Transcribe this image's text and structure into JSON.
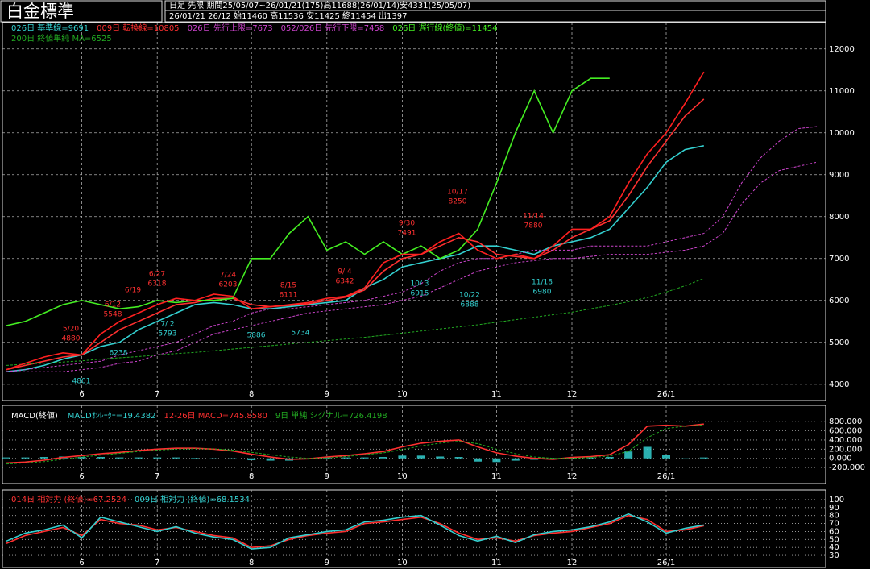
{
  "header": {
    "title": "白金標準",
    "info1": "日足 先限 期間25/05/07~26/01/21(175)高11688(26/01/14)安4331(25/05/07)",
    "info2": "26/01/21 26/12 始11460 高11536 安11425 終11454 出1397"
  },
  "chart_data": [
    {
      "type": "line",
      "grid": true,
      "categories": [
        null,
        null,
        null,
        null,
        "6",
        null,
        null,
        null,
        "7",
        null,
        null,
        null,
        null,
        "8",
        null,
        null,
        null,
        "9",
        null,
        null,
        null,
        "10",
        null,
        null,
        null,
        null,
        "11",
        null,
        null,
        null,
        "12",
        null,
        null,
        null,
        null,
        "26/1",
        null,
        null,
        null,
        null,
        null,
        null,
        null,
        null
      ],
      "ylim": [
        3900,
        12630
      ],
      "yticks": [
        4000,
        5000,
        6000,
        7000,
        8000,
        9000,
        10000,
        11000,
        12000
      ],
      "series": [
        {
          "name": "026日 基準線=9691",
          "color": "#33d0d0",
          "values": [
            4300,
            4350,
            4450,
            4600,
            4700,
            4900,
            5000,
            5300,
            5500,
            5700,
            5900,
            5950,
            5900,
            5800,
            5800,
            5850,
            5900,
            5950,
            6000,
            6300,
            6500,
            6800,
            6900,
            7000,
            7100,
            7300,
            7300,
            7200,
            7100,
            7300,
            7400,
            7500,
            7700,
            8200,
            8700,
            9300,
            9600,
            9691,
            null,
            null,
            null,
            null,
            null,
            null
          ]
        },
        {
          "name": "009日 転換線=10805",
          "color": "#ff3030",
          "values": [
            4350,
            4450,
            4550,
            4650,
            4700,
            5000,
            5300,
            5500,
            5700,
            5900,
            5950,
            6050,
            6050,
            5900,
            5850,
            5880,
            5920,
            6000,
            6080,
            6250,
            6700,
            7000,
            7100,
            7300,
            7500,
            7400,
            7100,
            7050,
            7000,
            7200,
            7500,
            7700,
            7900,
            8500,
            9200,
            9800,
            10400,
            10805,
            null,
            null,
            null,
            null,
            null,
            null
          ]
        },
        {
          "name": "026日 先行上限=7673",
          "color": "#cc44cc",
          "dashed": true,
          "values": [
            4300,
            4350,
            4400,
            4450,
            4500,
            4550,
            4700,
            4800,
            4900,
            5000,
            5200,
            5400,
            5500,
            5700,
            5800,
            5800,
            5850,
            5900,
            5950,
            6000,
            6100,
            6200,
            6400,
            6700,
            6900,
            7000,
            7000,
            7100,
            7200,
            7200,
            7200,
            7300,
            7300,
            7300,
            7300,
            7400,
            7500,
            7600,
            8000,
            8800,
            9400,
            9800,
            10100,
            10150
          ]
        },
        {
          "name": "052/026日 先行下限=7458",
          "color": "#cc44cc",
          "dashed": true,
          "values": [
            4300,
            4300,
            4300,
            4300,
            4350,
            4400,
            4500,
            4550,
            4700,
            4800,
            5000,
            5200,
            5300,
            5400,
            5500,
            5600,
            5700,
            5750,
            5800,
            5850,
            5900,
            6000,
            6100,
            6300,
            6500,
            6700,
            6800,
            6900,
            6950,
            7000,
            7000,
            7050,
            7100,
            7100,
            7100,
            7150,
            7200,
            7300,
            7600,
            8300,
            8800,
            9100,
            9200,
            9300
          ]
        },
        {
          "name": "026日 遅行線(終値)=11454",
          "color": "#44ee22",
          "values": [
            5400,
            5500,
            5700,
            5900,
            6000,
            5900,
            5800,
            5850,
            6000,
            5950,
            6000,
            6000,
            6050,
            7000,
            7000,
            7600,
            8000,
            7200,
            7400,
            7100,
            7400,
            7100,
            7300,
            7000,
            7200,
            7700,
            8800,
            10000,
            11000,
            10000,
            11000,
            11300,
            11300,
            null,
            null,
            null,
            null,
            null,
            null,
            null,
            null,
            null,
            null,
            null
          ]
        },
        {
          "name": "200日 終値単純 MA=6525",
          "color": "#22aa22",
          "dashed": true,
          "values": [
            4450,
            4480,
            4500,
            4530,
            4560,
            4600,
            4630,
            4660,
            4700,
            4730,
            4760,
            4800,
            4840,
            4880,
            4920,
            4960,
            5000,
            5040,
            5080,
            5120,
            5170,
            5220,
            5270,
            5320,
            5370,
            5420,
            5480,
            5540,
            5600,
            5660,
            5720,
            5800,
            5880,
            5970,
            6070,
            6200,
            6350,
            6525,
            null,
            null,
            null,
            null,
            null,
            null
          ]
        },
        {
          "color": "#ff2020",
          "values": [
            4350,
            4500,
            4650,
            4750,
            4700,
            5200,
            5500,
            5700,
            5900,
            6050,
            6000,
            6150,
            6100,
            5800,
            5850,
            5900,
            5950,
            6050,
            6100,
            6300,
            6900,
            7100,
            7100,
            7400,
            7600,
            7200,
            7000,
            7100,
            7000,
            7300,
            7700,
            7700,
            8000,
            8800,
            9500,
            10000,
            10700,
            11454,
            null,
            null,
            null,
            null,
            null,
            null
          ]
        }
      ],
      "annotations": [
        {
          "date": "5/20",
          "price": "4880",
          "color": "#ff3030"
        },
        {
          "date": "6/12",
          "price": "5548",
          "color": "#ff3030"
        },
        {
          "date": "6/19",
          "color": "#ff3030"
        },
        {
          "date": "6/27",
          "price": "6318",
          "color": "#ff3030"
        },
        {
          "date": "7/24",
          "price": "6203",
          "color": "#ff3030"
        },
        {
          "date": "8/15",
          "price": "6111",
          "color": "#ff3030"
        },
        {
          "date": "9/ 4",
          "price": "6342",
          "color": "#ff3030"
        },
        {
          "date": "9/30",
          "price": "7491",
          "color": "#ff3030"
        },
        {
          "date": "10/17",
          "price": "8250",
          "color": "#ff3030"
        },
        {
          "date": "11/14",
          "price": "7880",
          "color": "#ff3030"
        },
        {
          "price": "4801",
          "color": "#33d0d0"
        },
        {
          "price": "6238",
          "color": "#33d0d0"
        },
        {
          "date": "7/ 2",
          "price": "5793",
          "color": "#33d0d0"
        },
        {
          "price": "5886",
          "color": "#33d0d0"
        },
        {
          "price": "5734",
          "color": "#33d0d0"
        },
        {
          "date": "10/ 3",
          "price": "6915",
          "color": "#33d0d0"
        },
        {
          "date": "10/22",
          "price": "6888",
          "color": "#33d0d0"
        },
        {
          "date": "11/18",
          "price": "6980",
          "color": "#33d0d0"
        }
      ]
    },
    {
      "type": "line",
      "title": "MACD(終値)",
      "categories": [
        null,
        null,
        null,
        null,
        "6",
        null,
        null,
        null,
        "7",
        null,
        null,
        null,
        null,
        "8",
        null,
        null,
        null,
        "9",
        null,
        null,
        null,
        "10",
        null,
        null,
        null,
        null,
        "11",
        null,
        null,
        null,
        "12",
        null,
        null,
        null,
        null,
        "26/1",
        null,
        null
      ],
      "ylim": [
        -250,
        1030
      ],
      "yticks": [
        {
          "value": -200,
          "label": "-200.000"
        },
        {
          "value": 0,
          "label": "0.000"
        },
        {
          "value": 200,
          "label": "200.000"
        },
        {
          "value": 400,
          "label": "400.000"
        },
        {
          "value": 600,
          "label": "600.000"
        },
        {
          "value": 800,
          "label": "800.000"
        }
      ],
      "series": [
        {
          "name": "MACDｵｼﾚｰﾀｰ=19.4382",
          "type": "bar",
          "color": "#33d0d0",
          "values": [
            20,
            20,
            30,
            40,
            30,
            30,
            20,
            20,
            20,
            20,
            10,
            -5,
            -20,
            -40,
            -50,
            -50,
            -10,
            20,
            20,
            20,
            30,
            60,
            60,
            40,
            30,
            -70,
            -80,
            -50,
            -30,
            -20,
            20,
            20,
            30,
            150,
            250,
            70,
            0,
            19.4382
          ]
        },
        {
          "name": "12-26日 MACD=745.8580",
          "color": "#ff3030",
          "values": [
            -100,
            -80,
            -40,
            20,
            60,
            100,
            130,
            170,
            200,
            220,
            220,
            200,
            160,
            90,
            30,
            -20,
            -10,
            30,
            60,
            100,
            150,
            250,
            330,
            370,
            400,
            250,
            120,
            50,
            0,
            -20,
            20,
            40,
            80,
            300,
            700,
            720,
            700,
            745.858
          ]
        },
        {
          "name": "9日 単純 シグナル=726.4198",
          "color": "#22aa22",
          "dashed": true,
          "values": [
            -120,
            -100,
            -70,
            -20,
            30,
            70,
            110,
            150,
            180,
            200,
            210,
            205,
            180,
            130,
            80,
            30,
            0,
            10,
            40,
            80,
            120,
            190,
            270,
            330,
            370,
            320,
            200,
            100,
            30,
            0,
            0,
            20,
            50,
            150,
            450,
            650,
            700,
            726.4198
          ]
        }
      ]
    },
    {
      "type": "line",
      "categories": [
        null,
        null,
        null,
        null,
        "6",
        null,
        null,
        null,
        "7",
        null,
        null,
        null,
        null,
        "8",
        null,
        null,
        null,
        "9",
        null,
        null,
        null,
        "10",
        null,
        null,
        null,
        null,
        "11",
        null,
        null,
        null,
        "12",
        null,
        null,
        null,
        null,
        "26/1",
        null,
        null
      ],
      "ylim": [
        27,
        105
      ],
      "yticks": [
        30,
        40,
        50,
        60,
        70,
        80,
        90,
        100
      ],
      "series": [
        {
          "name": "014日 相対力 (終値)=67.2524",
          "color": "#ff3030",
          "values": [
            45,
            55,
            60,
            65,
            55,
            75,
            70,
            68,
            62,
            65,
            60,
            55,
            52,
            40,
            42,
            50,
            55,
            58,
            60,
            70,
            72,
            75,
            78,
            70,
            58,
            50,
            52,
            48,
            55,
            58,
            60,
            65,
            70,
            80,
            75,
            60,
            62,
            67.2524
          ]
        },
        {
          "name": "009日 相対力 (終値)=68.1534",
          "color": "#33d0d0",
          "values": [
            48,
            58,
            62,
            68,
            52,
            78,
            72,
            66,
            60,
            66,
            58,
            53,
            50,
            38,
            40,
            52,
            56,
            60,
            62,
            72,
            74,
            78,
            80,
            68,
            55,
            48,
            54,
            46,
            56,
            60,
            62,
            66,
            72,
            82,
            72,
            58,
            64,
            68.1534
          ]
        }
      ]
    }
  ]
}
